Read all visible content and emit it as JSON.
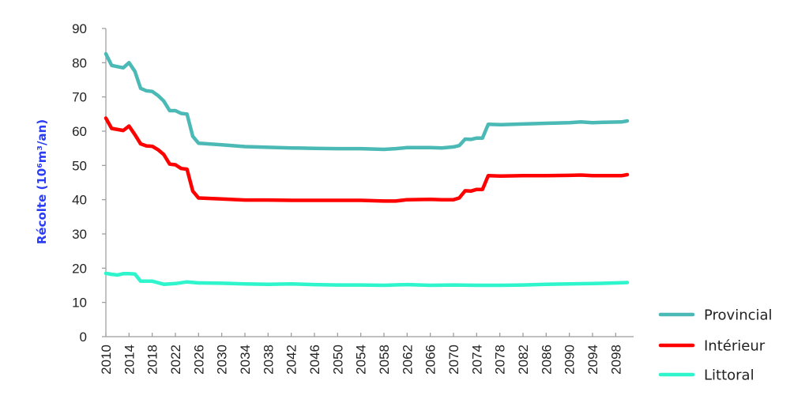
{
  "chart_data": {
    "type": "line",
    "title": "",
    "xlabel": "",
    "ylabel": "Récolte (10⁶m³/an)",
    "ylim": [
      0,
      90
    ],
    "xlim": [
      2010,
      2100
    ],
    "yticks": [
      0,
      10,
      20,
      30,
      40,
      50,
      60,
      70,
      80,
      90
    ],
    "xticks": [
      "2010",
      "2014",
      "2018",
      "2022",
      "2026",
      "2030",
      "2034",
      "2038",
      "2042",
      "2046",
      "2050",
      "2054",
      "2058",
      "2062",
      "2066",
      "2070",
      "2074",
      "2078",
      "2082",
      "2086",
      "2090",
      "2094",
      "2098"
    ],
    "grid": false,
    "legend_position": "right-bottom",
    "series": [
      {
        "name": "Provincial",
        "color": "#4bb9b5",
        "x": [
          2010,
          2011,
          2013,
          2014,
          2015,
          2016,
          2017,
          2018,
          2019,
          2020,
          2021,
          2022,
          2023,
          2024,
          2025,
          2026,
          2030,
          2034,
          2038,
          2042,
          2046,
          2050,
          2054,
          2058,
          2060,
          2062,
          2066,
          2068,
          2070,
          2071,
          2072,
          2073,
          2074,
          2075,
          2076,
          2078,
          2082,
          2086,
          2090,
          2092,
          2094,
          2096,
          2099,
          2100
        ],
        "values": [
          82.6,
          79.2,
          78.5,
          80.0,
          77.5,
          72.5,
          71.8,
          71.6,
          70.4,
          68.8,
          66.0,
          66.0,
          65.2,
          65.0,
          58.5,
          56.5,
          56.0,
          55.5,
          55.3,
          55.1,
          55.0,
          54.9,
          54.9,
          54.7,
          54.9,
          55.2,
          55.2,
          55.1,
          55.4,
          55.8,
          57.7,
          57.6,
          58.0,
          58.0,
          62.0,
          61.9,
          62.1,
          62.3,
          62.5,
          62.7,
          62.5,
          62.6,
          62.7,
          63.0
        ]
      },
      {
        "name": "Intérieur",
        "color": "#ff0000",
        "x": [
          2010,
          2011,
          2013,
          2014,
          2015,
          2016,
          2017,
          2018,
          2019,
          2020,
          2021,
          2022,
          2023,
          2024,
          2025,
          2026,
          2030,
          2034,
          2038,
          2042,
          2046,
          2050,
          2054,
          2058,
          2060,
          2062,
          2066,
          2068,
          2070,
          2071,
          2072,
          2073,
          2074,
          2075,
          2076,
          2078,
          2082,
          2086,
          2090,
          2092,
          2094,
          2096,
          2099,
          2100
        ],
        "values": [
          63.8,
          60.8,
          60.2,
          61.5,
          59.0,
          56.3,
          55.7,
          55.6,
          54.6,
          53.2,
          50.4,
          50.2,
          49.1,
          48.9,
          42.5,
          40.5,
          40.2,
          39.9,
          39.9,
          39.8,
          39.8,
          39.8,
          39.8,
          39.6,
          39.6,
          40.0,
          40.1,
          40.0,
          40.0,
          40.5,
          42.6,
          42.5,
          43.0,
          43.0,
          47.0,
          46.9,
          47.0,
          47.0,
          47.1,
          47.2,
          47.0,
          47.0,
          47.0,
          47.3
        ]
      },
      {
        "name": "Littoral",
        "color": "#2ef5cc",
        "x": [
          2010,
          2011,
          2012,
          2013,
          2014,
          2015,
          2016,
          2018,
          2020,
          2022,
          2024,
          2026,
          2030,
          2034,
          2038,
          2042,
          2046,
          2050,
          2054,
          2058,
          2062,
          2066,
          2070,
          2074,
          2078,
          2082,
          2086,
          2090,
          2094,
          2098,
          2100
        ],
        "values": [
          18.5,
          18.2,
          18.0,
          18.4,
          18.4,
          18.3,
          16.2,
          16.2,
          15.3,
          15.5,
          16.0,
          15.7,
          15.6,
          15.4,
          15.3,
          15.4,
          15.2,
          15.1,
          15.1,
          15.0,
          15.2,
          15.0,
          15.1,
          15.0,
          15.0,
          15.1,
          15.3,
          15.4,
          15.5,
          15.7,
          15.8
        ]
      }
    ]
  },
  "legend": {
    "items": [
      {
        "label": "Provincial",
        "color": "#4bb9b5"
      },
      {
        "label": "Intérieur",
        "color": "#ff0000"
      },
      {
        "label": "Littoral",
        "color": "#2ef5cc"
      }
    ]
  },
  "axis": {
    "ylabel": "Récolte (10⁶m³/an)"
  }
}
